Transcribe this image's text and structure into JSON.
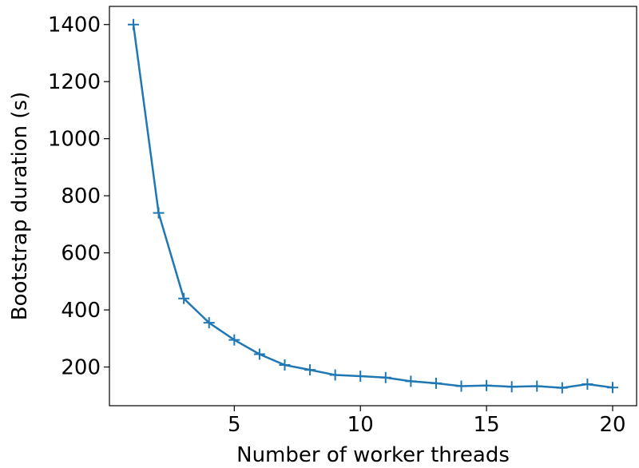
{
  "chart_data": {
    "type": "line",
    "xlabel": "Number of worker threads",
    "ylabel": "Bootstrap duration (s)",
    "x": [
      1,
      2,
      3,
      4,
      5,
      6,
      7,
      8,
      9,
      10,
      11,
      12,
      13,
      14,
      15,
      16,
      17,
      18,
      19,
      20
    ],
    "series": [
      {
        "color": "#1f77b4",
        "marker": "+",
        "values": [
          1400,
          740,
          440,
          355,
          295,
          245,
          207,
          190,
          172,
          168,
          163,
          150,
          143,
          133,
          135,
          131,
          133,
          127,
          140,
          128
        ]
      }
    ],
    "xlim": [
      0.05,
      20.95
    ],
    "xticks": [
      5,
      10,
      15,
      20
    ],
    "ylim": [
      64.4,
      1463.6
    ],
    "yticks": [
      200,
      400,
      600,
      800,
      1000,
      1200,
      1400
    ]
  }
}
